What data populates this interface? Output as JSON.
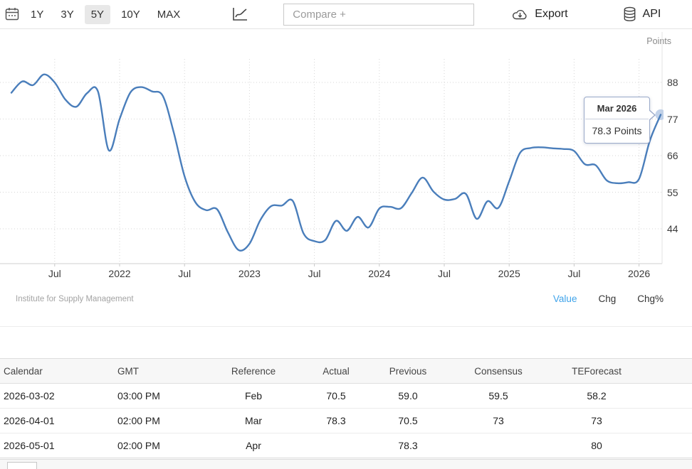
{
  "colors": {
    "line": "#4a7ebb",
    "marker_halo": "#b3c7e4",
    "active_link": "#3fa3ea"
  },
  "toolbar": {
    "ranges": [
      "1Y",
      "3Y",
      "5Y",
      "10Y",
      "MAX"
    ],
    "selected_range": "5Y",
    "compare_placeholder": "Compare +",
    "export_label": "Export",
    "api_label": "API"
  },
  "chart": {
    "unit_label": "Points",
    "tooltip_title": "Mar 2026",
    "tooltip_value": "78.3 Points",
    "attribution": "Institute for Supply Management",
    "modes": [
      "Value",
      "Chg",
      "Chg%"
    ],
    "active_mode": "Value"
  },
  "chart_data": {
    "type": "line",
    "title": "",
    "ylabel": "Points",
    "grid": true,
    "ylim": [
      33,
      103
    ],
    "yticks": [
      88,
      77,
      66,
      55,
      44
    ],
    "xticks": [
      {
        "i": 4,
        "label": "Jul"
      },
      {
        "i": 10,
        "label": "2022"
      },
      {
        "i": 16,
        "label": "Jul"
      },
      {
        "i": 22,
        "label": "2023"
      },
      {
        "i": 28,
        "label": "Jul"
      },
      {
        "i": 34,
        "label": "2024"
      },
      {
        "i": 40,
        "label": "Jul"
      },
      {
        "i": 46,
        "label": "2025"
      },
      {
        "i": 52,
        "label": "Jul"
      },
      {
        "i": 58,
        "label": "2026"
      }
    ],
    "x": [
      "2021-03",
      "2021-04",
      "2021-05",
      "2021-06",
      "2021-07",
      "2021-08",
      "2021-09",
      "2021-10",
      "2021-11",
      "2021-12",
      "2022-01",
      "2022-02",
      "2022-03",
      "2022-04",
      "2022-05",
      "2022-06",
      "2022-07",
      "2022-08",
      "2022-09",
      "2022-10",
      "2022-11",
      "2022-12",
      "2023-01",
      "2023-02",
      "2023-03",
      "2023-04",
      "2023-05",
      "2023-06",
      "2023-07",
      "2023-08",
      "2023-09",
      "2023-10",
      "2023-11",
      "2023-12",
      "2024-01",
      "2024-02",
      "2024-03",
      "2024-04",
      "2024-05",
      "2024-06",
      "2024-07",
      "2024-08",
      "2024-09",
      "2024-10",
      "2024-11",
      "2024-12",
      "2025-01",
      "2025-02",
      "2025-03",
      "2025-04",
      "2025-05",
      "2025-06",
      "2025-07",
      "2025-08",
      "2025-09",
      "2025-10",
      "2025-11",
      "2025-12",
      "2026-01",
      "2026-02",
      "2026-03"
    ],
    "values": [
      84.9,
      88.3,
      87.2,
      90.4,
      88.0,
      82.8,
      80.7,
      84.8,
      85.3,
      67.6,
      77.0,
      85.0,
      86.6,
      85.3,
      83.9,
      73.0,
      59.8,
      52.0,
      49.6,
      49.9,
      43.0,
      37.6,
      39.5,
      46.6,
      50.8,
      51.0,
      52.4,
      42.6,
      40.3,
      40.6,
      46.4,
      43.4,
      47.6,
      44.4,
      50.1,
      50.6,
      50.2,
      54.8,
      59.4,
      55.2,
      52.8,
      53.0,
      54.5,
      47.0,
      52.3,
      50.3,
      58.3,
      66.8,
      68.3,
      68.5,
      68.2,
      68.0,
      67.4,
      63.4,
      63.1,
      58.6,
      57.7,
      58.0,
      59.0,
      70.5,
      78.3
    ],
    "last_point": {
      "label": "Mar 2026",
      "value": 78.3
    }
  },
  "table": {
    "headers": [
      "Calendar",
      "GMT",
      "Reference",
      "Actual",
      "Previous",
      "Consensus",
      "TEForecast"
    ],
    "rows": [
      [
        "2026-03-02",
        "03:00 PM",
        "Feb",
        "70.5",
        "59.0",
        "59.5",
        "58.2"
      ],
      [
        "2026-04-01",
        "02:00 PM",
        "Mar",
        "78.3",
        "70.5",
        "73",
        "73"
      ],
      [
        "2026-05-01",
        "02:00 PM",
        "Apr",
        "",
        "78.3",
        "",
        "80"
      ]
    ]
  }
}
